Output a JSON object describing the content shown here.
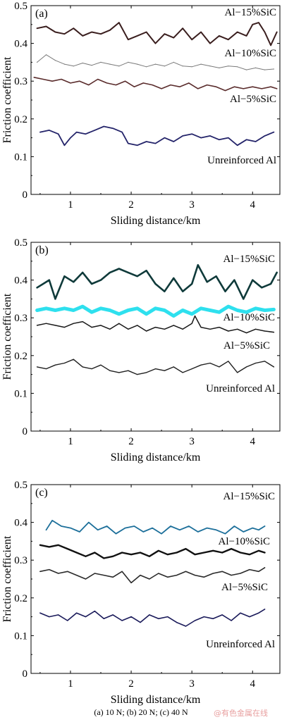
{
  "caption": "(a) 10 N; (b) 20 N; (c) 40 N",
  "watermark": "@有色金属在线",
  "chart_data": [
    {
      "type": "line",
      "panel_label": "(a)",
      "xlabel": "Sliding distance/km",
      "ylabel": "Friction coefficient",
      "xlim": [
        0.35,
        4.45
      ],
      "ylim": [
        0,
        0.5
      ],
      "xticks": [
        "1",
        "2",
        "3",
        "4"
      ],
      "yticks": [
        "0",
        "0.1",
        "0.2",
        "0.3",
        "0.4",
        "0.5"
      ],
      "series": [
        {
          "name": "Al−15%SiC",
          "color": "#3a1e1e",
          "width": 2.0,
          "x": [
            0.45,
            0.6,
            0.75,
            0.9,
            1.05,
            1.2,
            1.35,
            1.5,
            1.65,
            1.8,
            1.95,
            2.1,
            2.25,
            2.4,
            2.55,
            2.7,
            2.85,
            3.0,
            3.15,
            3.3,
            3.45,
            3.6,
            3.75,
            3.9,
            4.0,
            4.1,
            4.2,
            4.3,
            4.4
          ],
          "y": [
            0.44,
            0.445,
            0.43,
            0.425,
            0.44,
            0.42,
            0.43,
            0.425,
            0.435,
            0.455,
            0.41,
            0.42,
            0.43,
            0.4,
            0.425,
            0.415,
            0.44,
            0.41,
            0.43,
            0.4,
            0.42,
            0.41,
            0.43,
            0.42,
            0.45,
            0.455,
            0.43,
            0.395,
            0.43
          ]
        },
        {
          "name": "Al−10%SiC",
          "color": "#7a7a7a",
          "width": 1.0,
          "x": [
            0.45,
            0.6,
            0.75,
            0.9,
            1.05,
            1.2,
            1.35,
            1.5,
            1.65,
            1.8,
            1.95,
            2.1,
            2.25,
            2.4,
            2.55,
            2.7,
            2.85,
            3.0,
            3.15,
            3.3,
            3.45,
            3.6,
            3.75,
            3.9,
            4.05,
            4.2,
            4.35
          ],
          "y": [
            0.35,
            0.37,
            0.355,
            0.345,
            0.34,
            0.348,
            0.342,
            0.35,
            0.345,
            0.34,
            0.35,
            0.345,
            0.338,
            0.345,
            0.34,
            0.35,
            0.34,
            0.338,
            0.345,
            0.34,
            0.335,
            0.34,
            0.338,
            0.33,
            0.335,
            0.33,
            0.332
          ]
        },
        {
          "name": "Al−5%SiC",
          "color": "#5a2c2c",
          "width": 1.6,
          "x": [
            0.4,
            0.55,
            0.7,
            0.85,
            1.0,
            1.15,
            1.3,
            1.45,
            1.6,
            1.75,
            1.9,
            2.05,
            2.2,
            2.35,
            2.5,
            2.65,
            2.8,
            2.95,
            3.1,
            3.25,
            3.4,
            3.55,
            3.7,
            3.85,
            4.0,
            4.15,
            4.3,
            4.4
          ],
          "y": [
            0.31,
            0.305,
            0.3,
            0.305,
            0.295,
            0.3,
            0.29,
            0.305,
            0.295,
            0.29,
            0.3,
            0.285,
            0.295,
            0.29,
            0.28,
            0.29,
            0.285,
            0.295,
            0.28,
            0.29,
            0.285,
            0.275,
            0.285,
            0.28,
            0.285,
            0.28,
            0.285,
            0.28
          ]
        },
        {
          "name": "Unreinforced Al",
          "color": "#24246a",
          "width": 1.8,
          "x": [
            0.5,
            0.65,
            0.8,
            0.9,
            1.0,
            1.1,
            1.25,
            1.4,
            1.55,
            1.7,
            1.85,
            1.95,
            2.1,
            2.25,
            2.4,
            2.55,
            2.7,
            2.85,
            3.0,
            3.15,
            3.3,
            3.45,
            3.6,
            3.75,
            3.9,
            4.05,
            4.2,
            4.35
          ],
          "y": [
            0.165,
            0.17,
            0.16,
            0.13,
            0.15,
            0.165,
            0.16,
            0.17,
            0.18,
            0.175,
            0.165,
            0.135,
            0.13,
            0.14,
            0.135,
            0.15,
            0.14,
            0.155,
            0.16,
            0.15,
            0.155,
            0.145,
            0.15,
            0.13,
            0.145,
            0.14,
            0.155,
            0.165
          ]
        }
      ],
      "annotations": [
        "Al−15%SiC",
        "Al−10%SiC",
        "Al−5%SiC",
        "Unreinforced Al"
      ]
    },
    {
      "type": "line",
      "panel_label": "(b)",
      "xlabel": "Sliding distance/km",
      "ylabel": "Friction coefficient",
      "xlim": [
        0.35,
        4.45
      ],
      "ylim": [
        0,
        0.5
      ],
      "xticks": [
        "1",
        "2",
        "3",
        "4"
      ],
      "yticks": [
        "0",
        "0.1",
        "0.2",
        "0.3",
        "0.4",
        "0.5"
      ],
      "series": [
        {
          "name": "Al−15%SiC",
          "color": "#0f3a3a",
          "width": 2.6,
          "x": [
            0.45,
            0.55,
            0.65,
            0.75,
            0.9,
            1.05,
            1.2,
            1.35,
            1.5,
            1.65,
            1.8,
            1.95,
            2.1,
            2.25,
            2.4,
            2.55,
            2.7,
            2.85,
            3.0,
            3.1,
            3.25,
            3.4,
            3.55,
            3.7,
            3.85,
            4.0,
            4.15,
            4.3,
            4.4
          ],
          "y": [
            0.38,
            0.39,
            0.4,
            0.35,
            0.41,
            0.395,
            0.42,
            0.39,
            0.4,
            0.42,
            0.43,
            0.42,
            0.41,
            0.425,
            0.39,
            0.37,
            0.405,
            0.37,
            0.39,
            0.44,
            0.395,
            0.41,
            0.37,
            0.4,
            0.35,
            0.4,
            0.38,
            0.39,
            0.42
          ]
        },
        {
          "name": "Al−10%SiC",
          "color": "#2ee0ee",
          "width": 5.0,
          "x": [
            0.45,
            0.6,
            0.75,
            0.9,
            1.05,
            1.2,
            1.35,
            1.5,
            1.65,
            1.8,
            1.95,
            2.1,
            2.25,
            2.4,
            2.55,
            2.7,
            2.85,
            3.0,
            3.15,
            3.3,
            3.45,
            3.6,
            3.75,
            3.9,
            4.05,
            4.2,
            4.35
          ],
          "y": [
            0.32,
            0.325,
            0.32,
            0.325,
            0.32,
            0.33,
            0.315,
            0.325,
            0.32,
            0.31,
            0.32,
            0.325,
            0.31,
            0.325,
            0.32,
            0.305,
            0.32,
            0.31,
            0.325,
            0.32,
            0.315,
            0.33,
            0.32,
            0.315,
            0.325,
            0.32,
            0.322
          ]
        },
        {
          "name": "Al−5%SiC",
          "color": "#181818",
          "width": 1.5,
          "x": [
            0.45,
            0.6,
            0.75,
            0.9,
            1.05,
            1.2,
            1.35,
            1.5,
            1.65,
            1.8,
            1.95,
            2.1,
            2.25,
            2.4,
            2.55,
            2.7,
            2.85,
            3.0,
            3.05,
            3.15,
            3.3,
            3.45,
            3.6,
            3.75,
            3.9,
            4.05,
            4.2,
            4.35
          ],
          "y": [
            0.28,
            0.285,
            0.28,
            0.275,
            0.285,
            0.29,
            0.275,
            0.28,
            0.27,
            0.285,
            0.27,
            0.28,
            0.265,
            0.275,
            0.27,
            0.28,
            0.27,
            0.285,
            0.305,
            0.275,
            0.27,
            0.275,
            0.265,
            0.27,
            0.26,
            0.27,
            0.265,
            0.262
          ]
        },
        {
          "name": "Unreinforced Al",
          "color": "#202020",
          "width": 1.4,
          "x": [
            0.45,
            0.6,
            0.75,
            0.9,
            1.05,
            1.2,
            1.35,
            1.5,
            1.65,
            1.8,
            1.95,
            2.1,
            2.25,
            2.4,
            2.55,
            2.7,
            2.85,
            3.0,
            3.15,
            3.3,
            3.45,
            3.6,
            3.75,
            3.9,
            4.05,
            4.2,
            4.35
          ],
          "y": [
            0.17,
            0.165,
            0.175,
            0.18,
            0.19,
            0.17,
            0.165,
            0.175,
            0.16,
            0.155,
            0.16,
            0.15,
            0.155,
            0.165,
            0.16,
            0.17,
            0.155,
            0.165,
            0.175,
            0.18,
            0.17,
            0.185,
            0.155,
            0.17,
            0.18,
            0.185,
            0.17
          ]
        }
      ],
      "annotations": [
        "Al−15%SiC",
        "Al−10%SiC",
        "Al−5%SiC",
        "Unreinforced Al"
      ]
    },
    {
      "type": "line",
      "panel_label": "(c)",
      "xlabel": "Sliding distance/km",
      "ylabel": "Friction coefficient",
      "xlim": [
        0.35,
        4.45
      ],
      "ylim": [
        0,
        0.5
      ],
      "xticks": [
        "1",
        "2",
        "3",
        "4"
      ],
      "yticks": [
        "0",
        "0.1",
        "0.2",
        "0.3",
        "0.4",
        "0.5"
      ],
      "series": [
        {
          "name": "Al−15%SiC",
          "color": "#1c6f9a",
          "width": 1.8,
          "x": [
            0.6,
            0.7,
            0.85,
            1.0,
            1.15,
            1.3,
            1.45,
            1.6,
            1.75,
            1.9,
            2.05,
            2.2,
            2.35,
            2.5,
            2.65,
            2.8,
            2.95,
            3.1,
            3.25,
            3.4,
            3.55,
            3.7,
            3.85,
            4.0,
            4.1,
            4.2
          ],
          "y": [
            0.38,
            0.405,
            0.39,
            0.385,
            0.375,
            0.4,
            0.38,
            0.39,
            0.37,
            0.385,
            0.39,
            0.375,
            0.385,
            0.37,
            0.39,
            0.38,
            0.39,
            0.375,
            0.385,
            0.38,
            0.37,
            0.39,
            0.375,
            0.385,
            0.38,
            0.39
          ]
        },
        {
          "name": "Al−10%SiC",
          "color": "#111111",
          "width": 2.4,
          "x": [
            0.5,
            0.65,
            0.8,
            0.95,
            1.1,
            1.25,
            1.4,
            1.55,
            1.7,
            1.85,
            2.0,
            2.15,
            2.3,
            2.45,
            2.6,
            2.75,
            2.9,
            3.05,
            3.2,
            3.35,
            3.5,
            3.65,
            3.8,
            3.95,
            4.1,
            4.2
          ],
          "y": [
            0.34,
            0.335,
            0.34,
            0.33,
            0.32,
            0.31,
            0.32,
            0.305,
            0.31,
            0.32,
            0.315,
            0.32,
            0.31,
            0.325,
            0.315,
            0.32,
            0.33,
            0.315,
            0.32,
            0.325,
            0.32,
            0.33,
            0.32,
            0.315,
            0.325,
            0.32
          ]
        },
        {
          "name": "Al−5%SiC",
          "color": "#2a2a2a",
          "width": 1.6,
          "x": [
            0.5,
            0.65,
            0.8,
            0.95,
            1.1,
            1.25,
            1.4,
            1.55,
            1.7,
            1.85,
            2.0,
            2.15,
            2.3,
            2.45,
            2.6,
            2.75,
            2.9,
            3.05,
            3.2,
            3.35,
            3.5,
            3.65,
            3.8,
            3.95,
            4.1,
            4.2
          ],
          "y": [
            0.27,
            0.275,
            0.265,
            0.27,
            0.26,
            0.25,
            0.265,
            0.26,
            0.255,
            0.27,
            0.24,
            0.26,
            0.25,
            0.265,
            0.255,
            0.26,
            0.27,
            0.26,
            0.255,
            0.265,
            0.27,
            0.26,
            0.265,
            0.275,
            0.27,
            0.28
          ]
        },
        {
          "name": "Unreinforced Al",
          "color": "#1a1a5a",
          "width": 1.6,
          "x": [
            0.5,
            0.65,
            0.8,
            0.95,
            1.1,
            1.25,
            1.4,
            1.55,
            1.7,
            1.85,
            2.0,
            2.15,
            2.3,
            2.45,
            2.6,
            2.75,
            2.9,
            3.05,
            3.2,
            3.35,
            3.5,
            3.65,
            3.8,
            3.95,
            4.1,
            4.2
          ],
          "y": [
            0.16,
            0.15,
            0.155,
            0.14,
            0.16,
            0.15,
            0.165,
            0.145,
            0.155,
            0.14,
            0.15,
            0.135,
            0.155,
            0.145,
            0.15,
            0.135,
            0.125,
            0.14,
            0.15,
            0.145,
            0.155,
            0.14,
            0.16,
            0.15,
            0.16,
            0.17
          ]
        }
      ],
      "annotations": [
        "Al−15%SiC",
        "Al−10%SiC",
        "Al−5%SiC",
        "Unreinforced Al"
      ]
    }
  ]
}
